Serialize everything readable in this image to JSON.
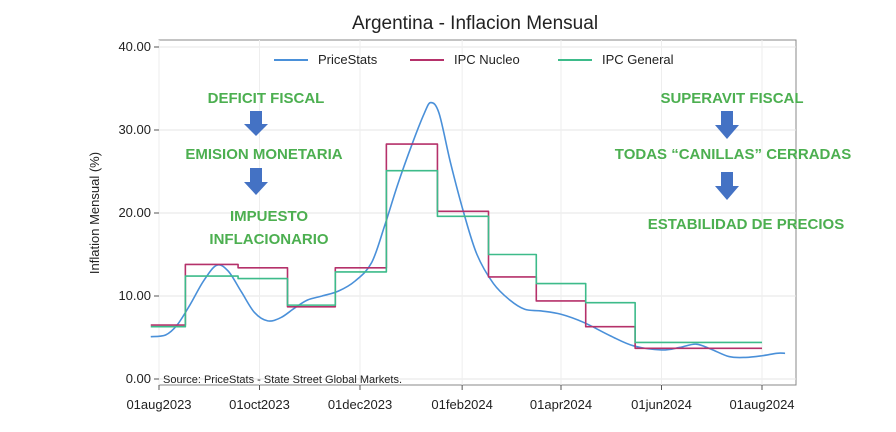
{
  "chart_data": {
    "type": "line",
    "title": "Argentina - Inflacion Mensual",
    "ylabel": "Inflation Mensual (%)",
    "xlabel": "",
    "ylim": [
      0,
      40
    ],
    "yticks": [
      "0.00",
      "10.00",
      "20.00",
      "30.00",
      "40.00"
    ],
    "ytick_values": [
      0,
      10,
      20,
      30,
      40
    ],
    "xticks": [
      {
        "label": "01aug2023",
        "date": "2023-08-01"
      },
      {
        "label": "01oct2023",
        "date": "2023-10-01"
      },
      {
        "label": "01dec2023",
        "date": "2023-12-01"
      },
      {
        "label": "01feb2024",
        "date": "2024-02-01"
      },
      {
        "label": "01apr2024",
        "date": "2024-04-01"
      },
      {
        "label": "01jun2024",
        "date": "2024-06-01"
      },
      {
        "label": "01aug2024",
        "date": "2024-08-01"
      }
    ],
    "xlim": [
      "2023-07-20",
      "2024-08-15"
    ],
    "grid": true,
    "legend_position": "top",
    "source": "Source: PriceStats - State Street Global Markets.",
    "series": [
      {
        "name": "PriceStats",
        "color": "#4a90d9",
        "style": "smooth",
        "points": [
          [
            "2023-07-27",
            5.1
          ],
          [
            "2023-08-05",
            5.3
          ],
          [
            "2023-08-12",
            6.5
          ],
          [
            "2023-08-20",
            9.0
          ],
          [
            "2023-08-28",
            11.8
          ],
          [
            "2023-09-05",
            13.7
          ],
          [
            "2023-09-12",
            13.0
          ],
          [
            "2023-09-20",
            10.5
          ],
          [
            "2023-09-28",
            8.0
          ],
          [
            "2023-10-06",
            7.0
          ],
          [
            "2023-10-14",
            7.4
          ],
          [
            "2023-10-22",
            8.5
          ],
          [
            "2023-10-30",
            9.5
          ],
          [
            "2023-11-08",
            10.0
          ],
          [
            "2023-11-18",
            10.6
          ],
          [
            "2023-11-28",
            11.8
          ],
          [
            "2023-12-08",
            14.0
          ],
          [
            "2023-12-16",
            18.5
          ],
          [
            "2023-12-24",
            23.5
          ],
          [
            "2024-01-02",
            28.5
          ],
          [
            "2024-01-09",
            32.0
          ],
          [
            "2024-01-13",
            33.3
          ],
          [
            "2024-01-18",
            32.0
          ],
          [
            "2024-01-25",
            26.0
          ],
          [
            "2024-02-02",
            20.0
          ],
          [
            "2024-02-10",
            15.0
          ],
          [
            "2024-02-20",
            11.5
          ],
          [
            "2024-03-01",
            9.5
          ],
          [
            "2024-03-10",
            8.4
          ],
          [
            "2024-03-20",
            8.2
          ],
          [
            "2024-04-01",
            7.8
          ],
          [
            "2024-04-15",
            6.8
          ],
          [
            "2024-05-01",
            5.2
          ],
          [
            "2024-05-15",
            4.0
          ],
          [
            "2024-06-01",
            3.5
          ],
          [
            "2024-06-12",
            3.8
          ],
          [
            "2024-06-22",
            4.2
          ],
          [
            "2024-07-01",
            3.6
          ],
          [
            "2024-07-12",
            2.7
          ],
          [
            "2024-07-22",
            2.6
          ],
          [
            "2024-08-01",
            2.8
          ],
          [
            "2024-08-10",
            3.1
          ],
          [
            "2024-08-15",
            3.1
          ]
        ]
      },
      {
        "name": "IPC Nucleo",
        "color": "#b5316a",
        "style": "step",
        "points": [
          [
            "2023-07-27",
            6.5
          ],
          [
            "2023-08-17",
            6.5
          ],
          [
            "2023-08-17",
            13.8
          ],
          [
            "2023-09-18",
            13.8
          ],
          [
            "2023-09-18",
            13.4
          ],
          [
            "2023-10-18",
            13.4
          ],
          [
            "2023-10-18",
            8.7
          ],
          [
            "2023-11-16",
            8.7
          ],
          [
            "2023-11-16",
            13.4
          ],
          [
            "2023-12-17",
            13.4
          ],
          [
            "2023-12-17",
            28.3
          ],
          [
            "2024-01-17",
            28.3
          ],
          [
            "2024-01-17",
            20.2
          ],
          [
            "2024-02-17",
            20.2
          ],
          [
            "2024-02-17",
            12.3
          ],
          [
            "2024-03-17",
            12.3
          ],
          [
            "2024-03-17",
            9.4
          ],
          [
            "2024-04-16",
            9.4
          ],
          [
            "2024-04-16",
            6.3
          ],
          [
            "2024-05-16",
            6.3
          ],
          [
            "2024-05-16",
            3.7
          ],
          [
            "2024-08-01",
            3.7
          ]
        ]
      },
      {
        "name": "IPC General",
        "color": "#3dbb8a",
        "style": "step",
        "points": [
          [
            "2023-07-27",
            6.3
          ],
          [
            "2023-08-17",
            6.3
          ],
          [
            "2023-08-17",
            12.4
          ],
          [
            "2023-09-18",
            12.4
          ],
          [
            "2023-09-18",
            12.1
          ],
          [
            "2023-10-18",
            12.1
          ],
          [
            "2023-10-18",
            8.9
          ],
          [
            "2023-11-16",
            8.9
          ],
          [
            "2023-11-16",
            12.9
          ],
          [
            "2023-12-17",
            12.9
          ],
          [
            "2023-12-17",
            25.1
          ],
          [
            "2024-01-17",
            25.1
          ],
          [
            "2024-01-17",
            19.6
          ],
          [
            "2024-02-17",
            19.6
          ],
          [
            "2024-02-17",
            15.0
          ],
          [
            "2024-03-17",
            15.0
          ],
          [
            "2024-03-17",
            11.5
          ],
          [
            "2024-04-16",
            11.5
          ],
          [
            "2024-04-16",
            9.2
          ],
          [
            "2024-05-16",
            9.2
          ],
          [
            "2024-05-16",
            4.4
          ],
          [
            "2024-08-01",
            4.4
          ]
        ]
      }
    ],
    "annotations": {
      "left": [
        "DEFICIT FISCAL",
        "EMISION MONETARIA",
        "IMPUESTO",
        "INFLACIONARIO"
      ],
      "right": [
        "SUPERAVIT FISCAL",
        "TODAS “CANILLAS” CERRADAS",
        "ESTABILIDAD DE PRECIOS"
      ],
      "text_color": "#4caf50",
      "arrow_color": "#4472c4"
    }
  }
}
